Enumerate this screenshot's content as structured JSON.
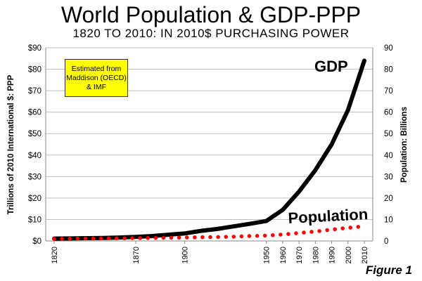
{
  "title": "World Population & GDP-PPP",
  "subtitle": "1820 TO 2010: IN 2010$ PURCHASING POWER",
  "figure_label": "Figure 1",
  "annotation": {
    "lines": [
      "Estimated from",
      "Maddison (OECD)",
      "& IMF"
    ]
  },
  "series_labels": {
    "gdp": "GDP",
    "population": "Population"
  },
  "colors": {
    "gdp": "#000000",
    "population": "#ff0000",
    "annotation_bg": "#ffff00"
  },
  "chart_data": {
    "type": "line",
    "title": "World Population & GDP-PPP",
    "subtitle": "1820 TO 2010: IN 2010$ PURCHASING POWER",
    "ylabel": "Trillions of 2010 International $: PPP",
    "y2label": "Population: Billions",
    "ylim": [
      0,
      90
    ],
    "y2lim": [
      0,
      90
    ],
    "xlim": [
      1820,
      2010
    ],
    "xticks": [
      1820,
      1870,
      1900,
      1950,
      1960,
      1970,
      1980,
      1990,
      2000,
      2010
    ],
    "yticks": [
      "$0",
      "$10",
      "$20",
      "$30",
      "$40",
      "$50",
      "$60",
      "$70",
      "$80",
      "$90"
    ],
    "y2ticks": [
      "0",
      "10",
      "20",
      "30",
      "40",
      "50",
      "60",
      "70",
      "80",
      "90"
    ],
    "grid": true,
    "series": [
      {
        "name": "GDP",
        "axis": "left",
        "x": [
          1820,
          1830,
          1840,
          1850,
          1860,
          1870,
          1880,
          1890,
          1900,
          1910,
          1920,
          1930,
          1940,
          1950,
          1960,
          1970,
          1980,
          1990,
          2000,
          2010
        ],
        "y": [
          1.1,
          1.2,
          1.3,
          1.4,
          1.6,
          1.9,
          2.3,
          2.9,
          3.5,
          4.7,
          5.6,
          6.8,
          8.0,
          9.3,
          14.5,
          23,
          33,
          45,
          61,
          84
        ]
      },
      {
        "name": "Population",
        "axis": "right",
        "x": [
          1820,
          1830,
          1840,
          1850,
          1860,
          1870,
          1880,
          1890,
          1900,
          1910,
          1920,
          1930,
          1940,
          1950,
          1960,
          1970,
          1980,
          1990,
          2000,
          2010
        ],
        "y": [
          1.0,
          1.1,
          1.15,
          1.2,
          1.25,
          1.3,
          1.4,
          1.5,
          1.6,
          1.75,
          1.85,
          2.0,
          2.3,
          2.5,
          3.0,
          3.7,
          4.4,
          5.3,
          6.1,
          6.9
        ]
      }
    ]
  }
}
